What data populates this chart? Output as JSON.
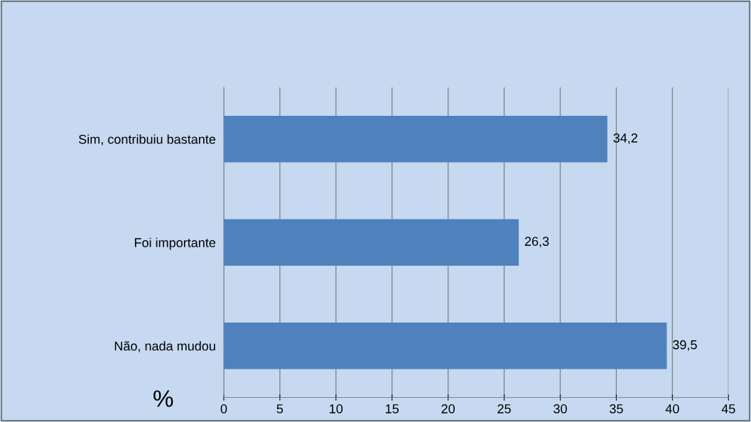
{
  "chart_data": {
    "type": "bar",
    "orientation": "horizontal",
    "xlabel": "%",
    "categories": [
      "Sim, contribuiu bastante",
      "Foi importante",
      "Não, nada mudou"
    ],
    "values": [
      34.2,
      26.3,
      39.5
    ],
    "value_labels": [
      "34,2",
      "26,3",
      "39,5"
    ],
    "color": "#4f81bd",
    "xlim": [
      0,
      45
    ],
    "xticks": [
      0,
      5,
      10,
      15,
      20,
      25,
      30,
      35,
      40,
      45
    ],
    "grid": "x",
    "legend": false
  }
}
